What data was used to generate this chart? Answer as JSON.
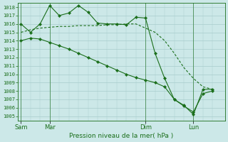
{
  "bg_color": "#cce8e8",
  "grid_color": "#a8cccc",
  "line_color": "#1a6e1a",
  "title": "Pression niveau de la mer( hPa )",
  "ylim": [
    1004.5,
    1018.5
  ],
  "yticks": [
    1005,
    1006,
    1007,
    1008,
    1009,
    1010,
    1011,
    1012,
    1013,
    1014,
    1015,
    1016,
    1017,
    1018
  ],
  "x_ticks_labels": [
    "Sam",
    "Mar",
    "Dim",
    "Lun"
  ],
  "x_ticks_pos": [
    0,
    3,
    13,
    18
  ],
  "xlim": [
    -0.3,
    21.3
  ],
  "series1_x": [
    0,
    1,
    2,
    3,
    4,
    5,
    6,
    7,
    8,
    9,
    10,
    11,
    12,
    13,
    14,
    15,
    16,
    17,
    18,
    19,
    20
  ],
  "series1_y": [
    1016.0,
    1015.0,
    1016.0,
    1018.2,
    1017.0,
    1017.3,
    1018.2,
    1017.4,
    1016.1,
    1016.0,
    1016.0,
    1015.9,
    1016.8,
    1016.7,
    1012.5,
    1009.5,
    1007.0,
    1006.3,
    1005.2,
    1008.2,
    1008.2
  ],
  "series2_x": [
    0,
    1,
    2,
    3,
    4,
    5,
    6,
    7,
    8,
    9,
    10,
    11,
    12,
    13,
    14,
    15,
    16,
    17,
    18,
    19,
    20
  ],
  "series2_y": [
    1015.0,
    1015.3,
    1015.5,
    1015.6,
    1015.7,
    1015.7,
    1015.8,
    1015.8,
    1015.8,
    1015.9,
    1015.9,
    1016.0,
    1016.0,
    1015.5,
    1015.0,
    1014.0,
    1012.5,
    1010.8,
    1009.5,
    1008.5,
    1008.2
  ],
  "series3_x": [
    0,
    1,
    2,
    3,
    4,
    5,
    6,
    7,
    8,
    9,
    10,
    11,
    12,
    13,
    14,
    15,
    16,
    17,
    18,
    19,
    20
  ],
  "series3_y": [
    1014.0,
    1014.3,
    1014.2,
    1013.8,
    1013.4,
    1013.0,
    1012.5,
    1012.0,
    1011.5,
    1011.0,
    1010.5,
    1010.0,
    1009.6,
    1009.3,
    1009.0,
    1008.5,
    1007.0,
    1006.2,
    1005.5,
    1007.7,
    1008.0
  ],
  "marker_series1": [
    0,
    1,
    2,
    3,
    4,
    5,
    6,
    7,
    8,
    9,
    10,
    11,
    12,
    13,
    14,
    15,
    16,
    17,
    18,
    19,
    20
  ],
  "marker_series3": [
    0,
    1,
    2,
    3,
    4,
    5,
    6,
    7,
    8,
    9,
    10,
    11,
    12,
    13,
    14,
    15,
    16,
    17,
    18,
    19,
    20
  ]
}
